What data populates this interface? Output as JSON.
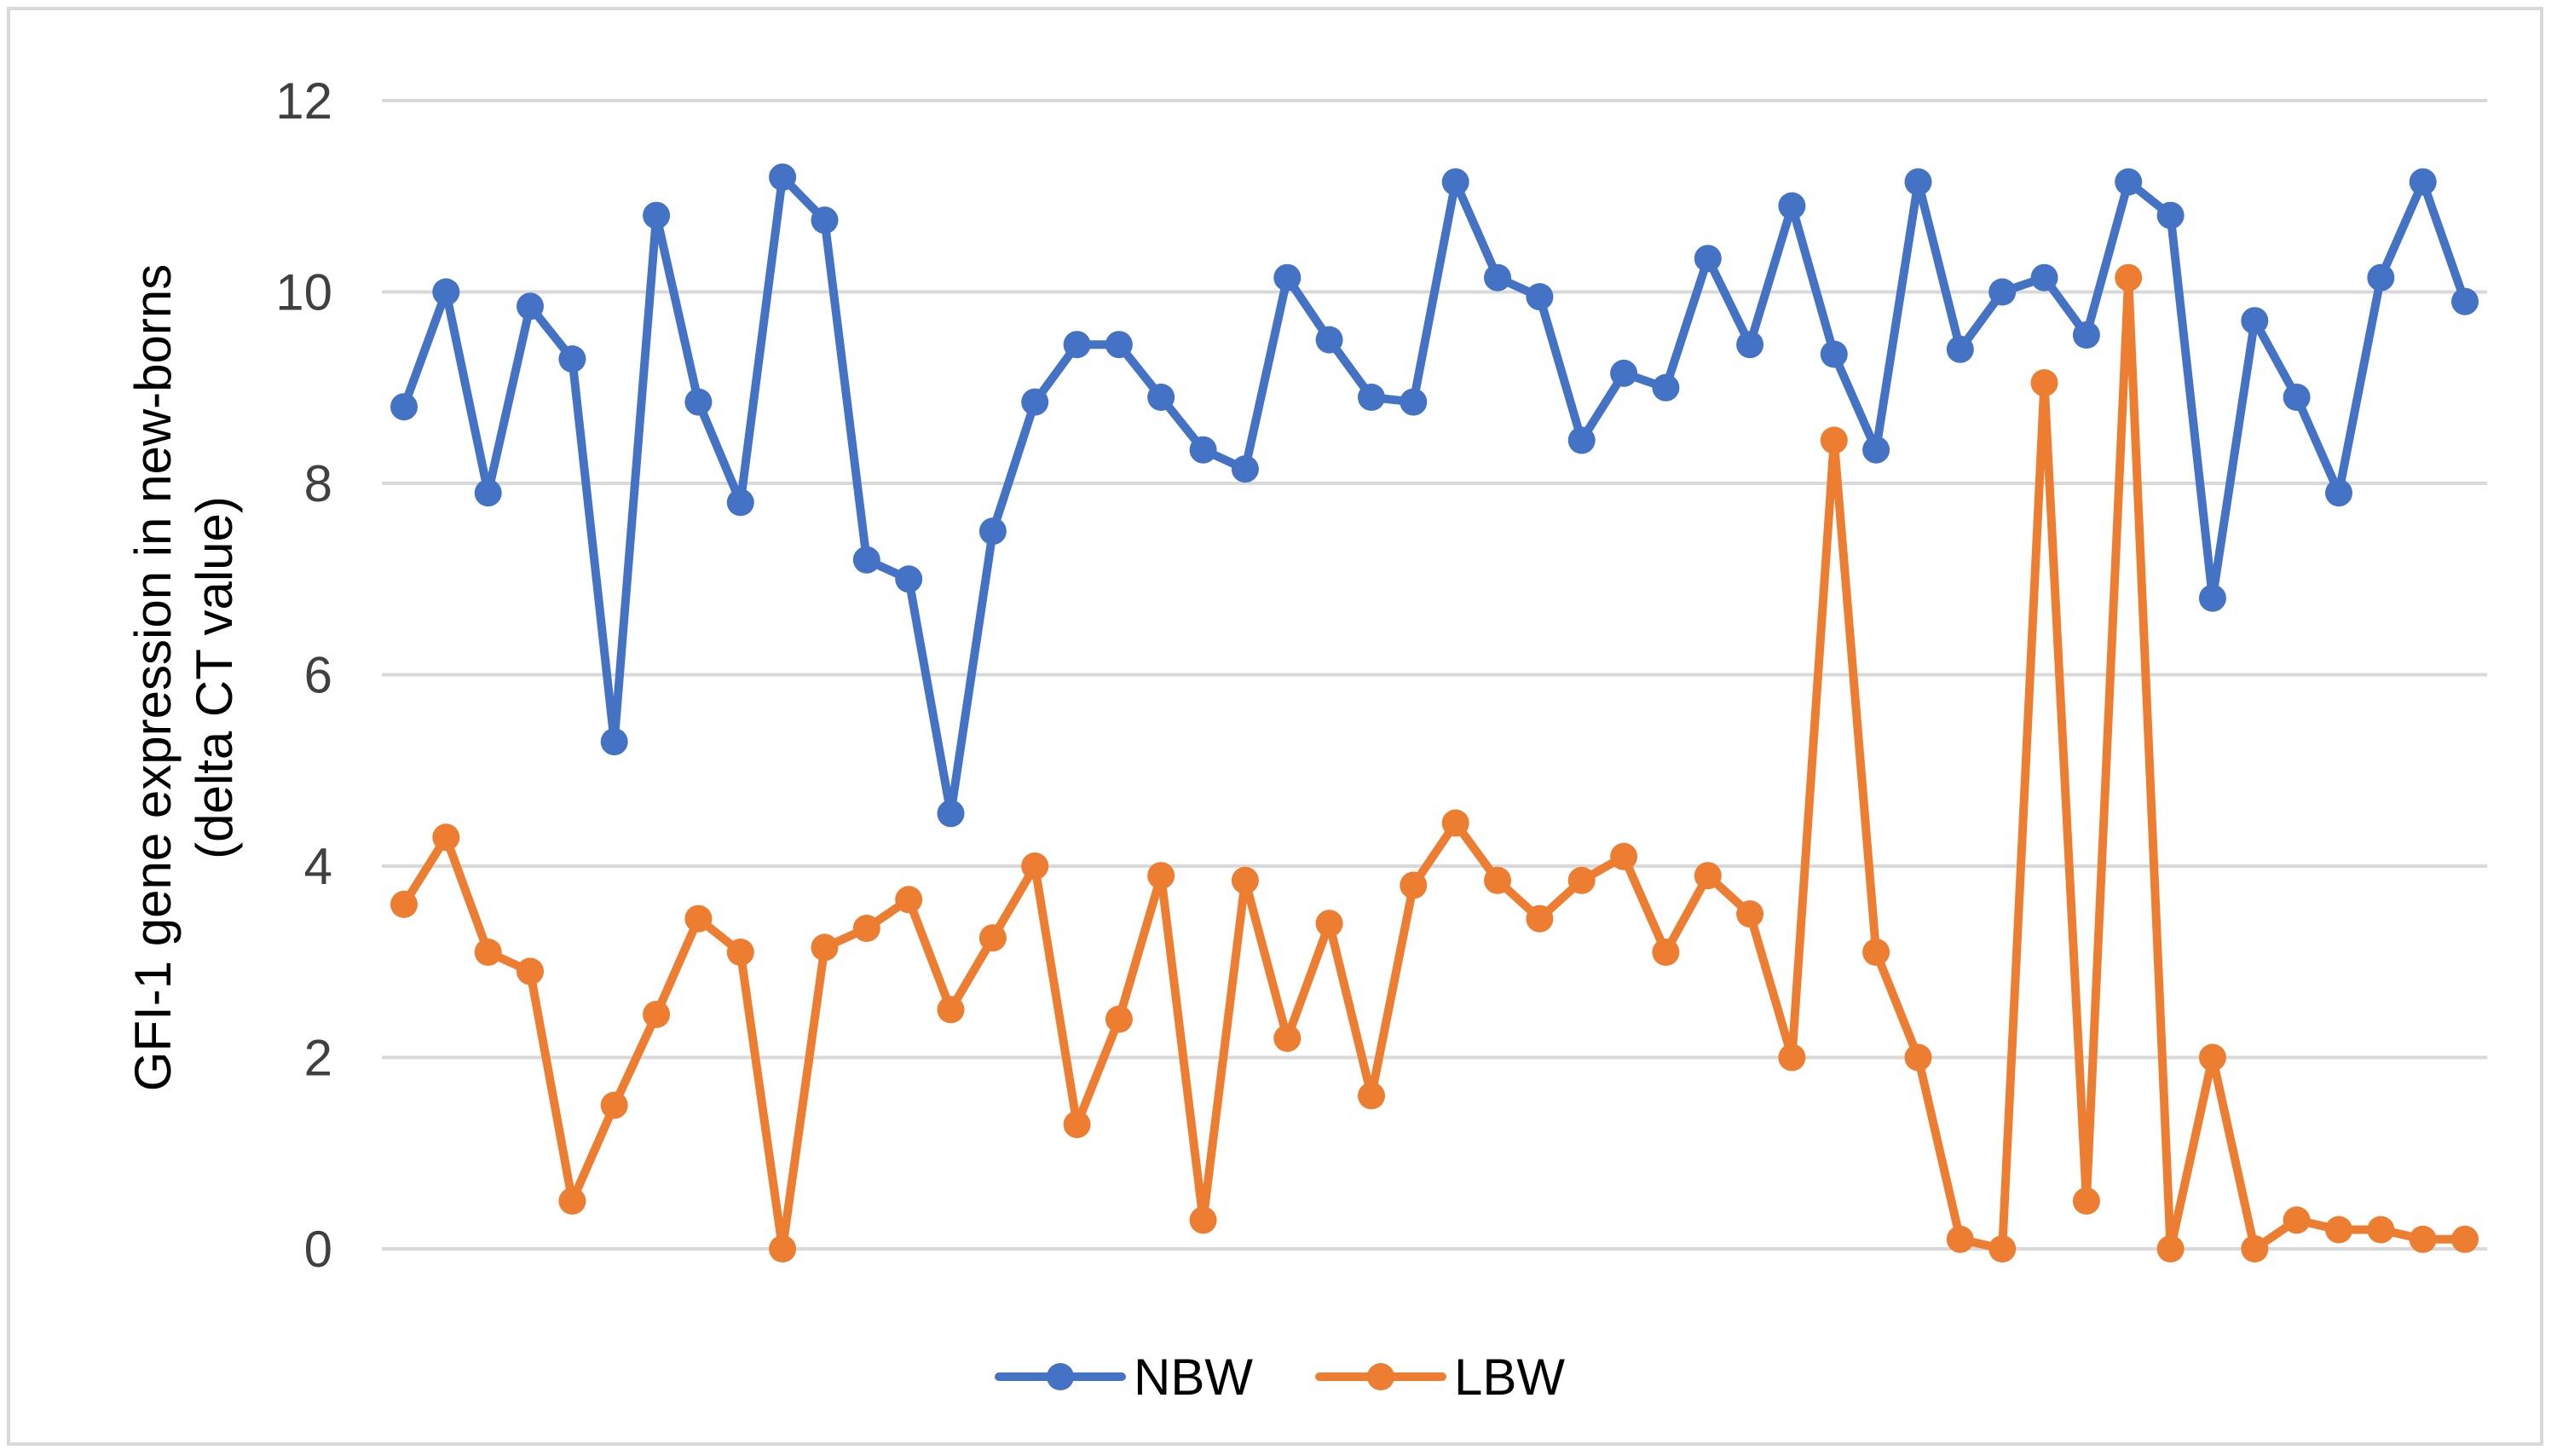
{
  "chart_data": {
    "type": "line",
    "title": "",
    "xlabel": "",
    "ylabel": [
      "GFI-1 gene expression in new-borns",
      "(delta CT value)"
    ],
    "ylim": [
      0,
      12
    ],
    "yticks": [
      0,
      2,
      4,
      6,
      8,
      10,
      12
    ],
    "grid": true,
    "legend_position": "bottom",
    "series": [
      {
        "name": "NBW",
        "color": "#4472C4",
        "values": [
          8.8,
          10.0,
          7.9,
          9.85,
          9.3,
          5.3,
          10.8,
          8.85,
          7.8,
          11.2,
          10.75,
          7.2,
          7.0,
          4.55,
          7.5,
          8.85,
          9.45,
          9.45,
          8.9,
          8.35,
          8.15,
          10.15,
          9.5,
          8.9,
          8.85,
          11.15,
          10.15,
          9.95,
          8.45,
          9.15,
          9.0,
          10.35,
          9.45,
          10.9,
          9.35,
          8.35,
          11.15,
          9.4,
          10.0,
          10.15,
          9.55,
          11.15,
          10.8,
          6.8,
          9.7,
          8.9,
          7.9,
          10.15,
          11.15,
          9.9
        ]
      },
      {
        "name": "LBW",
        "color": "#ED7D31",
        "values": [
          3.6,
          4.3,
          3.1,
          2.9,
          0.5,
          1.5,
          2.45,
          3.45,
          3.1,
          0.0,
          3.15,
          3.35,
          3.65,
          2.5,
          3.25,
          4.0,
          1.3,
          2.4,
          3.9,
          0.3,
          3.85,
          2.2,
          3.4,
          1.6,
          3.8,
          4.45,
          3.85,
          3.45,
          3.85,
          4.1,
          3.1,
          3.9,
          3.5,
          2.0,
          8.45,
          3.1,
          2.0,
          0.1,
          0.0,
          9.05,
          0.5,
          10.15,
          0.0,
          2.0,
          0.0,
          0.3,
          0.2,
          0.2,
          0.1,
          0.1
        ]
      }
    ]
  }
}
